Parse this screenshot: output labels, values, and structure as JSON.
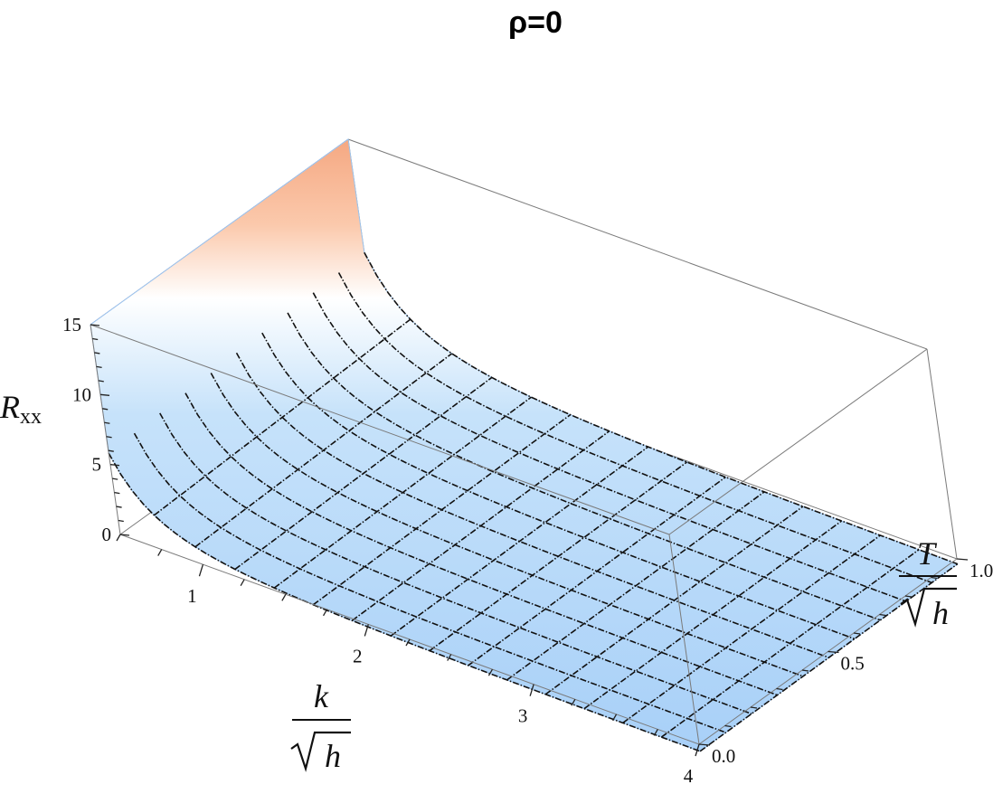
{
  "chart_data": {
    "type": "surface3d",
    "title": "ρ=0",
    "xlabel": {
      "numerator": "k",
      "radical": "h"
    },
    "ylabel": {
      "numerator": "T",
      "radical": "h"
    },
    "zlabel": {
      "base": "R",
      "sub": "xx"
    },
    "x_ticks": [
      "1",
      "2",
      "3",
      "4"
    ],
    "y_ticks": [
      "0.0",
      "0.5",
      "1.0"
    ],
    "z_ticks": [
      "0",
      "5",
      "10",
      "15"
    ],
    "xlim": [
      0,
      4
    ],
    "ylim": [
      0,
      1
    ],
    "zlim": [
      0,
      15
    ],
    "mesh": {
      "k_lines": 15,
      "t_lines": 10
    },
    "colors": {
      "high": "#f5a882",
      "mid": "#ffffff",
      "low": "#a8d0f8",
      "cap": "#8aa8f0",
      "box": "#7a7a7a"
    }
  }
}
